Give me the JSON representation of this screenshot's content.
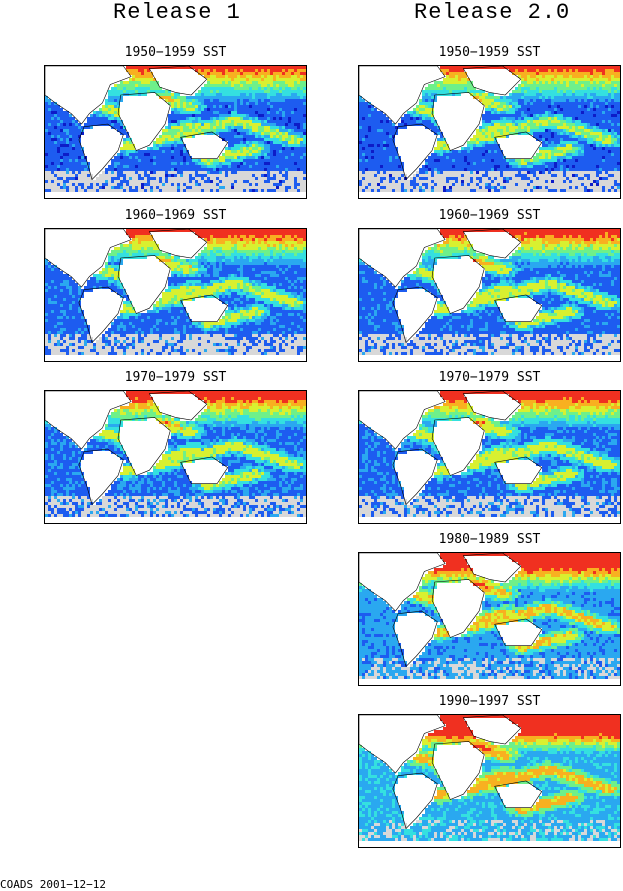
{
  "columns": [
    {
      "title": "Release 1",
      "panels": [
        {
          "title": "1950−1959 SST",
          "density": 0.25
        },
        {
          "title": "1960−1969 SST",
          "density": 0.3
        },
        {
          "title": "1970−1979 SST",
          "density": 0.35
        }
      ]
    },
    {
      "title": "Release 2.0",
      "panels": [
        {
          "title": "1950−1959 SST",
          "density": 0.25
        },
        {
          "title": "1960−1969 SST",
          "density": 0.3
        },
        {
          "title": "1970−1979 SST",
          "density": 0.35
        },
        {
          "title": "1980−1989 SST",
          "density": 0.55
        },
        {
          "title": "1990−1997 SST",
          "density": 0.7
        }
      ]
    }
  ],
  "footer": "COADS 2001−12−12",
  "colors": {
    "scale": [
      "#0d1cc8",
      "#1d5cf0",
      "#2aa8f0",
      "#34e0e0",
      "#6ef08a",
      "#d8f030",
      "#f8b020",
      "#f03020"
    ],
    "missing": "#d8d8d8",
    "land": "#ffffff"
  }
}
